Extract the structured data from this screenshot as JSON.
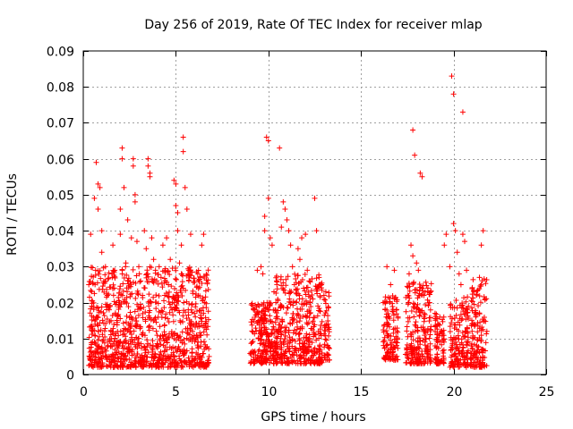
{
  "chart_data": {
    "type": "scatter",
    "title": "Day 256 of 2019, Rate Of TEC Index for receiver mlap",
    "xlabel": "GPS time / hours",
    "ylabel": "ROTI / TECUs",
    "xlim": [
      0,
      25
    ],
    "ylim": [
      0,
      0.09
    ],
    "x_ticks": [
      0,
      5,
      10,
      15,
      20,
      25
    ],
    "x_tick_labels": [
      "0",
      "5",
      "10",
      "15",
      "20",
      "25"
    ],
    "y_ticks": [
      0,
      0.01,
      0.02,
      0.03,
      0.04,
      0.05,
      0.06,
      0.07,
      0.08,
      0.09
    ],
    "y_tick_labels": [
      "0",
      "0.01",
      "0.02",
      "0.03",
      "0.04",
      "0.05",
      "0.06",
      "0.07",
      "0.08",
      "0.09"
    ],
    "grid": true,
    "marker": "plus",
    "color": "#ff0000",
    "series": [
      {
        "name": "ROTI",
        "points": [
          [
            0.3,
            0.025
          ],
          [
            0.4,
            0.039
          ],
          [
            0.5,
            0.012
          ],
          [
            0.6,
            0.049
          ],
          [
            0.7,
            0.059
          ],
          [
            0.8,
            0.046
          ],
          [
            0.8,
            0.053
          ],
          [
            0.9,
            0.052
          ],
          [
            1.0,
            0.04
          ],
          [
            1.0,
            0.034
          ],
          [
            1.2,
            0.03
          ],
          [
            1.3,
            0.022
          ],
          [
            1.4,
            0.018
          ],
          [
            1.5,
            0.012
          ],
          [
            1.6,
            0.036
          ],
          [
            1.7,
            0.029
          ],
          [
            1.8,
            0.02
          ],
          [
            2.0,
            0.046
          ],
          [
            2.0,
            0.039
          ],
          [
            2.1,
            0.063
          ],
          [
            2.1,
            0.06
          ],
          [
            2.2,
            0.052
          ],
          [
            2.3,
            0.031
          ],
          [
            2.4,
            0.043
          ],
          [
            2.6,
            0.038
          ],
          [
            2.7,
            0.06
          ],
          [
            2.7,
            0.058
          ],
          [
            2.8,
            0.05
          ],
          [
            2.8,
            0.048
          ],
          [
            2.9,
            0.037
          ],
          [
            3.0,
            0.03
          ],
          [
            3.1,
            0.026
          ],
          [
            3.2,
            0.022
          ],
          [
            3.3,
            0.04
          ],
          [
            3.4,
            0.035
          ],
          [
            3.5,
            0.06
          ],
          [
            3.5,
            0.058
          ],
          [
            3.6,
            0.056
          ],
          [
            3.6,
            0.055
          ],
          [
            3.7,
            0.038
          ],
          [
            3.8,
            0.032
          ],
          [
            3.9,
            0.029
          ],
          [
            4.1,
            0.03
          ],
          [
            4.2,
            0.027
          ],
          [
            4.3,
            0.036
          ],
          [
            4.4,
            0.022
          ],
          [
            4.5,
            0.038
          ],
          [
            4.6,
            0.025
          ],
          [
            4.7,
            0.032
          ],
          [
            4.8,
            0.018
          ],
          [
            4.9,
            0.021
          ],
          [
            4.9,
            0.054
          ],
          [
            5.0,
            0.053
          ],
          [
            5.0,
            0.047
          ],
          [
            5.1,
            0.045
          ],
          [
            5.1,
            0.04
          ],
          [
            5.2,
            0.031
          ],
          [
            5.3,
            0.036
          ],
          [
            5.4,
            0.066
          ],
          [
            5.4,
            0.062
          ],
          [
            5.5,
            0.052
          ],
          [
            5.6,
            0.046
          ],
          [
            5.7,
            0.029
          ],
          [
            5.8,
            0.039
          ],
          [
            5.9,
            0.012
          ],
          [
            6.0,
            0.017
          ],
          [
            6.2,
            0.009
          ],
          [
            6.4,
            0.036
          ],
          [
            6.5,
            0.039
          ],
          [
            6.6,
            0.014
          ],
          [
            6.8,
            0.005
          ],
          [
            9.2,
            0.018
          ],
          [
            9.4,
            0.029
          ],
          [
            9.6,
            0.03
          ],
          [
            9.7,
            0.028
          ],
          [
            9.8,
            0.044
          ],
          [
            9.8,
            0.04
          ],
          [
            9.9,
            0.066
          ],
          [
            10.0,
            0.065
          ],
          [
            10.0,
            0.049
          ],
          [
            10.1,
            0.038
          ],
          [
            10.2,
            0.036
          ],
          [
            10.3,
            0.023
          ],
          [
            10.4,
            0.02
          ],
          [
            10.5,
            0.012
          ],
          [
            10.6,
            0.063
          ],
          [
            10.7,
            0.041
          ],
          [
            10.8,
            0.048
          ],
          [
            10.9,
            0.046
          ],
          [
            11.0,
            0.043
          ],
          [
            11.1,
            0.04
          ],
          [
            11.2,
            0.036
          ],
          [
            11.3,
            0.03
          ],
          [
            11.4,
            0.025
          ],
          [
            11.5,
            0.02
          ],
          [
            11.6,
            0.035
          ],
          [
            11.7,
            0.032
          ],
          [
            11.8,
            0.038
          ],
          [
            11.9,
            0.024
          ],
          [
            12.0,
            0.039
          ],
          [
            12.1,
            0.029
          ],
          [
            12.2,
            0.026
          ],
          [
            12.4,
            0.021
          ],
          [
            12.5,
            0.049
          ],
          [
            12.6,
            0.04
          ],
          [
            12.7,
            0.012
          ],
          [
            12.8,
            0.007
          ],
          [
            13.0,
            0.022
          ],
          [
            13.1,
            0.023
          ],
          [
            13.2,
            0.008
          ],
          [
            16.4,
            0.03
          ],
          [
            16.6,
            0.025
          ],
          [
            16.8,
            0.029
          ],
          [
            17.0,
            0.016
          ],
          [
            17.6,
            0.028
          ],
          [
            17.7,
            0.036
          ],
          [
            17.8,
            0.033
          ],
          [
            17.8,
            0.068
          ],
          [
            17.9,
            0.061
          ],
          [
            18.0,
            0.031
          ],
          [
            18.1,
            0.029
          ],
          [
            18.2,
            0.056
          ],
          [
            18.3,
            0.055
          ],
          [
            18.4,
            0.022
          ],
          [
            18.6,
            0.012
          ],
          [
            19.0,
            0.017
          ],
          [
            19.2,
            0.014
          ],
          [
            19.5,
            0.036
          ],
          [
            19.6,
            0.039
          ],
          [
            19.8,
            0.03
          ],
          [
            19.9,
            0.083
          ],
          [
            20.0,
            0.078
          ],
          [
            20.0,
            0.042
          ],
          [
            20.1,
            0.04
          ],
          [
            20.2,
            0.034
          ],
          [
            20.3,
            0.028
          ],
          [
            20.4,
            0.025
          ],
          [
            20.5,
            0.073
          ],
          [
            20.5,
            0.039
          ],
          [
            20.6,
            0.037
          ],
          [
            20.7,
            0.029
          ],
          [
            20.8,
            0.019
          ],
          [
            21.0,
            0.012
          ],
          [
            21.2,
            0.016
          ],
          [
            21.4,
            0.027
          ],
          [
            21.5,
            0.036
          ],
          [
            21.6,
            0.04
          ],
          [
            21.7,
            0.021
          ],
          [
            21.8,
            0.012
          ]
        ]
      }
    ],
    "dense_clusters": [
      {
        "x_range": [
          0.3,
          6.8
        ],
        "y_range": [
          0.002,
          0.03
        ]
      },
      {
        "x_range": [
          9.0,
          10.5
        ],
        "y_range": [
          0.003,
          0.02
        ]
      },
      {
        "x_range": [
          10.4,
          12.9
        ],
        "y_range": [
          0.003,
          0.028
        ]
      },
      {
        "x_range": [
          13.0,
          13.3
        ],
        "y_range": [
          0.004,
          0.024
        ]
      },
      {
        "x_range": [
          16.2,
          17.0
        ],
        "y_range": [
          0.004,
          0.022
        ]
      },
      {
        "x_range": [
          17.4,
          18.8
        ],
        "y_range": [
          0.003,
          0.026
        ]
      },
      {
        "x_range": [
          19.0,
          19.5
        ],
        "y_range": [
          0.003,
          0.017
        ]
      },
      {
        "x_range": [
          19.8,
          20.8
        ],
        "y_range": [
          0.002,
          0.022
        ]
      },
      {
        "x_range": [
          20.9,
          21.8
        ],
        "y_range": [
          0.002,
          0.027
        ]
      }
    ]
  }
}
